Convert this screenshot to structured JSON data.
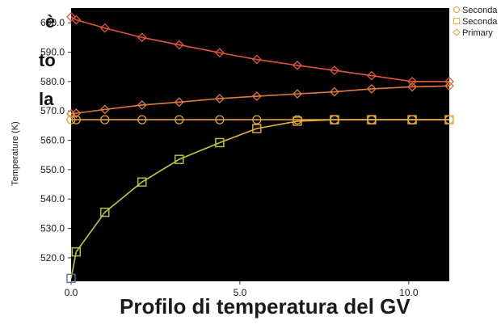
{
  "side_text": [
    "è",
    "to",
    "la"
  ],
  "caption": "Profilo di temperatura del GV",
  "colors": {
    "background": "#000000",
    "primary": "#e4543a",
    "secondary_circle": "#e2a23c",
    "secondary_square": "#e8b23a",
    "secondary_square_low": "#5a6fb0",
    "secondary_square_mid": "#b9cf3a",
    "tick_text": "#1a1a1a"
  },
  "chart_data": {
    "type": "line",
    "title": "",
    "xlabel": "",
    "ylabel": "Temperature (K)",
    "xlim": [
      0,
      11.2
    ],
    "ylim": [
      512,
      605
    ],
    "xticks": [
      "0.0",
      "5.0",
      "10.0"
    ],
    "xtick_values": [
      0,
      5,
      10
    ],
    "yticks": [
      "520.0",
      "530.0",
      "540.0",
      "550.0",
      "560.0",
      "570.0",
      "580.0",
      "590.0",
      "600.0"
    ],
    "ytick_values": [
      520,
      530,
      540,
      550,
      560,
      570,
      580,
      590,
      600
    ],
    "grid": false,
    "legend_position": "top-right",
    "legend": [
      {
        "label": "Seconda",
        "marker": "circle"
      },
      {
        "label": "Seconda",
        "marker": "square"
      },
      {
        "label": "Primary",
        "marker": "diamond"
      }
    ],
    "series": [
      {
        "name": "Primary",
        "marker": "diamond",
        "x": [
          0,
          0.15,
          1.0,
          2.1,
          3.2,
          4.4,
          5.5,
          6.7,
          7.8,
          8.9,
          10.1,
          11.2
        ],
        "y": [
          602.0,
          601.0,
          598.2,
          595.0,
          592.5,
          589.8,
          587.5,
          585.5,
          583.8,
          582.0,
          580.0,
          580.0
        ]
      },
      {
        "name": "Primary",
        "marker": "diamond",
        "x": [
          0,
          0.15,
          1.0,
          2.1,
          3.2,
          4.4,
          5.5,
          6.7,
          7.8,
          8.9,
          10.1,
          11.2
        ],
        "y": [
          569.0,
          569.2,
          570.5,
          572.0,
          573.0,
          574.2,
          575.0,
          575.8,
          576.5,
          577.5,
          578.2,
          578.5
        ]
      },
      {
        "name": "Seconda",
        "marker": "circle",
        "x": [
          0,
          0.15,
          1.0,
          2.1,
          3.2,
          4.4,
          5.5,
          6.7,
          7.8,
          8.9,
          10.1,
          11.2
        ],
        "y": [
          567.0,
          567.0,
          567.0,
          567.0,
          567.0,
          567.0,
          567.0,
          567.0,
          567.0,
          567.0,
          567.0,
          567.0
        ]
      },
      {
        "name": "Seconda",
        "marker": "square",
        "x": [
          0,
          0.15,
          1.0,
          2.1,
          3.2,
          4.4,
          5.5,
          6.7,
          7.8,
          8.9,
          10.1,
          11.2
        ],
        "y": [
          513.0,
          522.0,
          535.5,
          545.8,
          553.5,
          559.2,
          564.0,
          566.5,
          567.0,
          567.0,
          567.0,
          567.0
        ]
      }
    ]
  }
}
